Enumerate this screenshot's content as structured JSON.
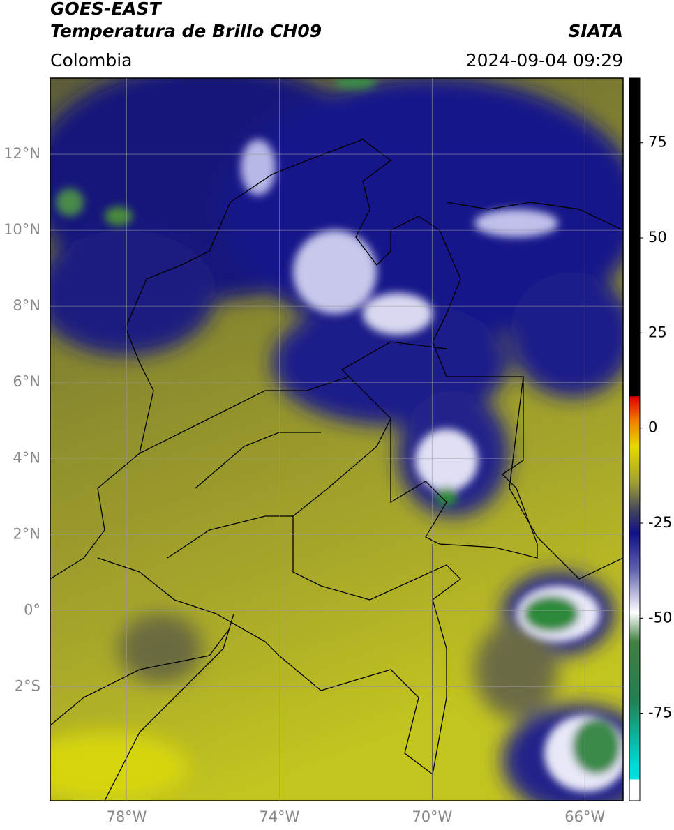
{
  "header": {
    "satellite": "GOES-EAST",
    "product": "Temperatura de Brillo CH09",
    "region": "Colombia",
    "source": "SIATA",
    "datetime": "2024-09-04 09:29"
  },
  "map": {
    "lon_range": [
      -80,
      -65
    ],
    "lat_range": [
      -5,
      14
    ],
    "lat_ticks": [
      {
        "value": 12,
        "label": "12°N"
      },
      {
        "value": 10,
        "label": "10°N"
      },
      {
        "value": 8,
        "label": "8°N"
      },
      {
        "value": 6,
        "label": "6°N"
      },
      {
        "value": 4,
        "label": "4°N"
      },
      {
        "value": 2,
        "label": "2°N"
      },
      {
        "value": 0,
        "label": "0°"
      },
      {
        "value": -2,
        "label": "2°S"
      }
    ],
    "lon_ticks": [
      {
        "value": -78,
        "label": "78°W"
      },
      {
        "value": -74,
        "label": "74°W"
      },
      {
        "value": -70,
        "label": "70°W"
      },
      {
        "value": -66,
        "label": "66°W"
      }
    ]
  },
  "colorbar": {
    "range": [
      -98,
      92
    ],
    "ticks": [
      75,
      50,
      25,
      0,
      -25,
      -50,
      -75
    ]
  }
}
